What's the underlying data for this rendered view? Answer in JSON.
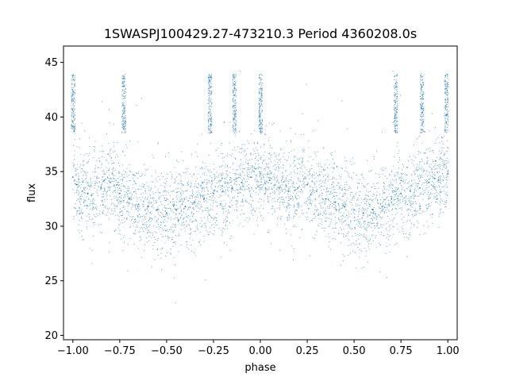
{
  "chart_data": {
    "type": "scatter",
    "title": "1SWASPJ100429.27-473210.3 Period 4360208.0s",
    "xlabel": "phase",
    "ylabel": "flux",
    "xlim": [
      -1.05,
      1.05
    ],
    "ylim": [
      19.6,
      46.5
    ],
    "xticks": [
      -1.0,
      -0.75,
      -0.5,
      -0.25,
      0.0,
      0.25,
      0.5,
      0.75,
      1.0
    ],
    "xtick_labels": [
      "−1.00",
      "−0.75",
      "−0.50",
      "−0.25",
      "0.00",
      "0.25",
      "0.50",
      "0.75",
      "1.00"
    ],
    "yticks": [
      20,
      25,
      30,
      35,
      40,
      45
    ],
    "ytick_labels": [
      "20",
      "25",
      "30",
      "35",
      "40",
      "45"
    ],
    "grid": false,
    "marker_color": "#1f77b4",
    "phase_range": [
      -1.0,
      1.0
    ],
    "series": [
      {
        "points": [
          [
            -1.0,
            34.5
          ],
          [
            -0.98,
            33.8
          ],
          [
            -0.95,
            33.2
          ],
          [
            -0.92,
            33.0
          ],
          [
            -0.9,
            32.8
          ],
          [
            -0.85,
            33.5
          ],
          [
            -0.8,
            34.0
          ],
          [
            -0.75,
            33.0
          ],
          [
            -0.7,
            32.5
          ],
          [
            -0.65,
            32.0
          ],
          [
            -0.6,
            31.8
          ],
          [
            -0.55,
            31.5
          ],
          [
            -0.5,
            31.2
          ],
          [
            -0.45,
            31.5
          ],
          [
            -0.4,
            31.8
          ],
          [
            -0.35,
            32.2
          ],
          [
            -0.3,
            32.5
          ],
          [
            -0.25,
            33.0
          ],
          [
            -0.2,
            33.2
          ],
          [
            -0.15,
            33.5
          ],
          [
            -0.1,
            34.0
          ],
          [
            -0.05,
            34.5
          ],
          [
            0.0,
            34.8
          ],
          [
            0.05,
            34.2
          ],
          [
            0.1,
            33.5
          ],
          [
            0.15,
            33.2
          ],
          [
            0.2,
            33.5
          ],
          [
            0.25,
            33.8
          ],
          [
            0.3,
            33.2
          ],
          [
            0.35,
            32.5
          ],
          [
            0.4,
            32.2
          ],
          [
            0.45,
            31.8
          ],
          [
            0.5,
            31.5
          ],
          [
            0.55,
            31.2
          ],
          [
            0.6,
            31.5
          ],
          [
            0.65,
            31.8
          ],
          [
            0.7,
            32.5
          ],
          [
            0.75,
            33.0
          ],
          [
            0.8,
            33.2
          ],
          [
            0.85,
            33.5
          ],
          [
            0.9,
            34.0
          ],
          [
            0.95,
            34.2
          ],
          [
            1.0,
            34.8
          ]
        ]
      }
    ],
    "flare_phases": [
      -1.0,
      -0.73,
      -0.27,
      -0.14,
      0.0,
      0.72,
      0.86,
      0.99
    ]
  }
}
